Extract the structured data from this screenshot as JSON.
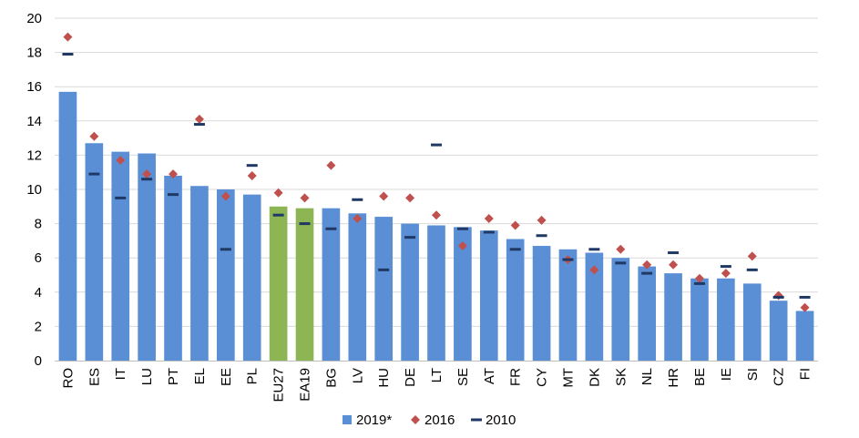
{
  "chart_data": {
    "type": "bar",
    "title": "",
    "xlabel": "",
    "ylabel": "",
    "ylim": [
      0,
      20
    ],
    "yticks": [
      0,
      2,
      4,
      6,
      8,
      10,
      12,
      14,
      16,
      18,
      20
    ],
    "grid": true,
    "legend_position": "bottom",
    "categories": [
      "RO",
      "ES",
      "IT",
      "LU",
      "PT",
      "EL",
      "EE",
      "PL",
      "EU27",
      "EA19",
      "BG",
      "LV",
      "HU",
      "DE",
      "LT",
      "SE",
      "AT",
      "FR",
      "CY",
      "MT",
      "DK",
      "SK",
      "NL",
      "HR",
      "BE",
      "IE",
      "SI",
      "CZ",
      "FI"
    ],
    "series": [
      {
        "name": "2019*",
        "kind": "bar",
        "color": "#5B8FD5",
        "highlight_color": "#8DB553",
        "highlight_categories": [
          "EU27",
          "EA19"
        ],
        "values": [
          15.7,
          12.7,
          12.2,
          12.1,
          10.8,
          10.2,
          10.0,
          9.7,
          9.0,
          8.9,
          8.9,
          8.6,
          8.4,
          8.0,
          7.9,
          7.8,
          7.6,
          7.1,
          6.7,
          6.5,
          6.3,
          6.0,
          5.5,
          5.1,
          4.8,
          4.8,
          4.5,
          3.5,
          2.9
        ]
      },
      {
        "name": "2016",
        "kind": "diamond",
        "color": "#C0504D",
        "values": [
          18.9,
          13.1,
          11.7,
          10.9,
          10.9,
          14.1,
          9.6,
          10.8,
          9.8,
          9.5,
          11.4,
          8.3,
          9.6,
          9.5,
          8.5,
          6.7,
          8.3,
          7.9,
          8.2,
          5.9,
          5.3,
          6.5,
          5.6,
          5.6,
          4.8,
          5.1,
          6.1,
          3.8,
          3.1
        ]
      },
      {
        "name": "2010",
        "kind": "dash",
        "color": "#1F3864",
        "values": [
          17.9,
          10.9,
          9.5,
          10.6,
          9.7,
          13.8,
          6.5,
          11.4,
          8.5,
          8.0,
          7.7,
          9.4,
          5.3,
          7.2,
          12.6,
          7.7,
          7.5,
          6.5,
          7.3,
          5.9,
          6.5,
          5.7,
          5.1,
          6.3,
          4.5,
          5.5,
          5.3,
          3.7,
          3.7
        ]
      }
    ]
  }
}
